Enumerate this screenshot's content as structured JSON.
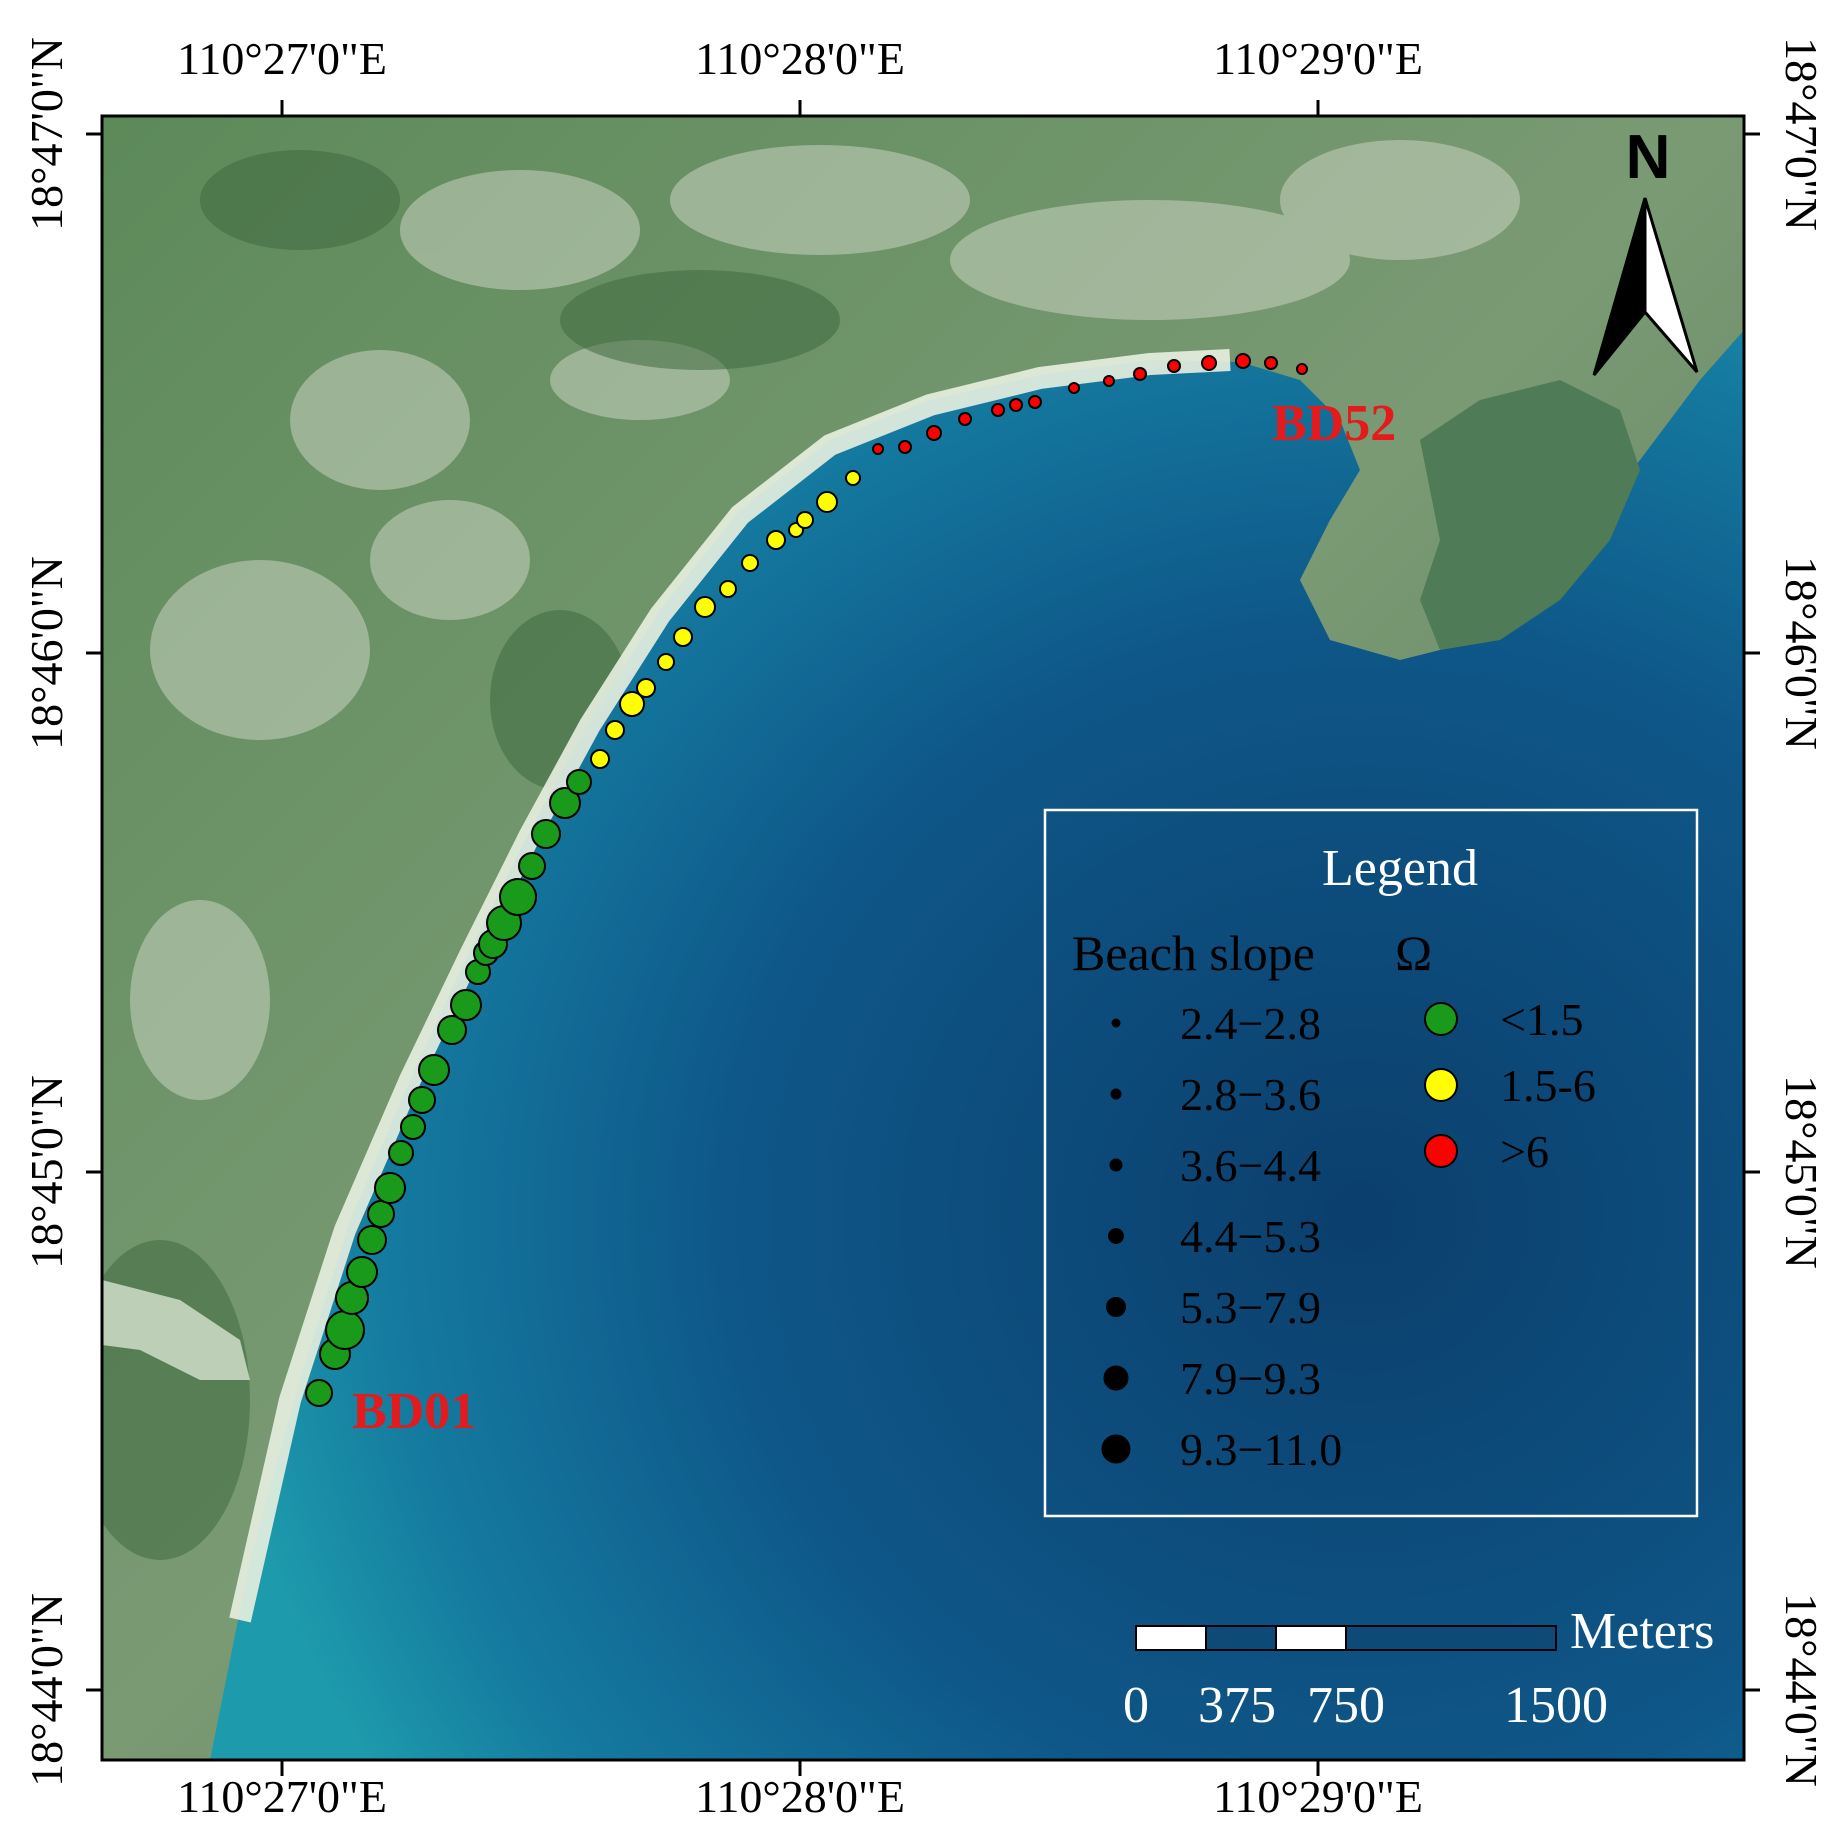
{
  "map": {
    "longitude_ticks": [
      "110°27'0\"E",
      "110°28'0\"E",
      "110°29'0\"E"
    ],
    "latitude_ticks": [
      "18°47'0\"N",
      "18°46'0\"N",
      "18°45'0\"N",
      "18°44'0\"N"
    ]
  },
  "north_arrow": {
    "label": "N"
  },
  "sites": {
    "start": "BD01",
    "end": "BD52"
  },
  "legend": {
    "title": "Legend",
    "size_heading": "Beach slope",
    "color_heading": "Ω",
    "size_classes": [
      "2.4−2.8",
      "2.8−3.6",
      "3.6−4.4",
      "4.4−5.3",
      "5.3−7.9",
      "7.9−9.3",
      "9.3−11.0"
    ],
    "color_classes": [
      {
        "label": "<1.5",
        "color": "#1a9a1a"
      },
      {
        "label": "1.5-6",
        "color": "#ffff00"
      },
      {
        "label": ">6",
        "color": "#ff0000"
      }
    ]
  },
  "scale_bar": {
    "unit": "Meters",
    "labels": [
      "0",
      "375",
      "750",
      "1500"
    ]
  },
  "colors": {
    "sea_deep": "#0d4a78",
    "sea_shallow": "#1a8fa8",
    "land": "#4f7a4f",
    "beach": "#e8efe0"
  }
}
